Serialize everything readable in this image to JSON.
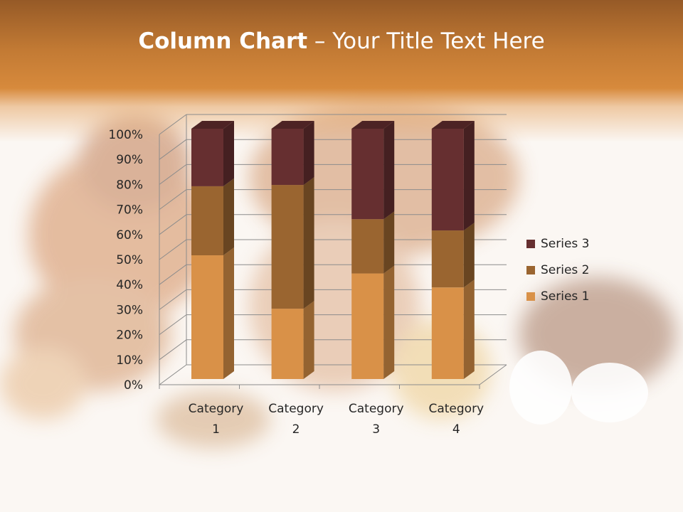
{
  "slide": {
    "title_bold": "Column Chart",
    "title_rest": " – Your Title Text Here"
  },
  "chart_data": {
    "type": "bar",
    "subtype": "3d-stacked-100-percent-column",
    "categories": [
      [
        "Category",
        "1"
      ],
      [
        "Category",
        "2"
      ],
      [
        "Category",
        "3"
      ],
      [
        "Category",
        "4"
      ]
    ],
    "series": [
      {
        "name": "Series 1",
        "values": [
          4.3,
          2.5,
          3.5,
          4.5
        ],
        "color": "#d99148"
      },
      {
        "name": "Series 2",
        "values": [
          2.4,
          4.4,
          1.8,
          2.8
        ],
        "color": "#9a6530"
      },
      {
        "name": "Series 3",
        "values": [
          2,
          2,
          3,
          5
        ],
        "color": "#662f30"
      }
    ],
    "yticks": [
      "0%",
      "10%",
      "20%",
      "30%",
      "40%",
      "50%",
      "60%",
      "70%",
      "80%",
      "90%",
      "100%"
    ],
    "ylim": [
      0,
      100
    ],
    "grid": true,
    "legend": "right"
  }
}
